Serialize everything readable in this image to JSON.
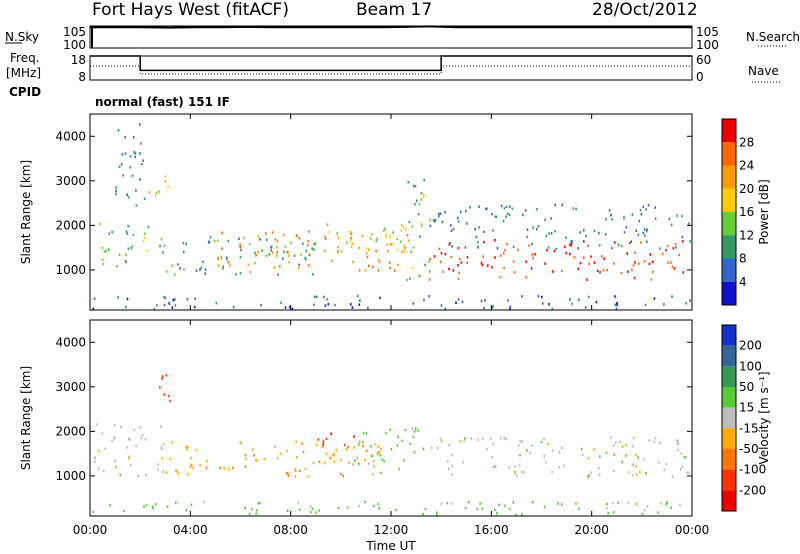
{
  "header": {
    "station": "Fort Hays West (fitACF)",
    "beam": "Beam 17",
    "date": "28/Oct/2012"
  },
  "side_labels": {
    "nsky": "N.Sky",
    "nsearch": "N.Search",
    "freq_line1": "Freq.",
    "freq_line2": "[MHz]",
    "nave": "Nave",
    "cpid_label": "CPID",
    "cpid_value": "normal (fast) 151 IF"
  },
  "chart_data": [
    {
      "id": "noise",
      "type": "line",
      "left_ticks": [
        "10^5",
        "10^0"
      ],
      "right_ticks": [
        "10^5",
        "10^0"
      ],
      "series": [
        {
          "values_log10": [
            5.0,
            5.0,
            5.0,
            4.9,
            5.0,
            5.0,
            5.1,
            5.0,
            5.0,
            5.0,
            5.0,
            5.0,
            5.1,
            5.2,
            5.0,
            5.0,
            5.0,
            5.0,
            5.0,
            5.0,
            5.0,
            5.0,
            5.0,
            5.0
          ]
        }
      ]
    },
    {
      "id": "freq_nave",
      "type": "line",
      "x": [
        0,
        2,
        2,
        14,
        14,
        24
      ],
      "left_ticks": [
        "18",
        "8"
      ],
      "right_ticks": [
        "60",
        "0"
      ],
      "freq_mhz": [
        18,
        18,
        12,
        12,
        18,
        18
      ],
      "nave": [
        35,
        35,
        15,
        15,
        35,
        35
      ]
    },
    {
      "id": "power",
      "type": "heatmap",
      "ylabel": "Slant Range [km]",
      "yticks": [
        1000,
        2000,
        3000,
        4000
      ],
      "ylim": [
        100,
        4500
      ],
      "xlim": [
        0,
        24
      ],
      "colorbar": {
        "label": "Power [dB]",
        "ticks": [
          "28",
          "24",
          "20",
          "16",
          "12",
          "8",
          "4"
        ],
        "colors": [
          "#ee0000",
          "#ff6600",
          "#ff9900",
          "#ffcc00",
          "#66cc33",
          "#339966",
          "#3366cc",
          "#1111cc"
        ]
      },
      "echo_regions": [
        {
          "t0": 0.1,
          "t1": 1.7,
          "r0": 1000,
          "r1": 2200,
          "level": 12
        },
        {
          "t0": 1.0,
          "t1": 2.2,
          "r0": 2200,
          "r1": 4300,
          "level": 8
        },
        {
          "t0": 2.2,
          "t1": 3.3,
          "r0": 2700,
          "r1": 3300,
          "level": 18
        },
        {
          "t0": 1.8,
          "t1": 3.2,
          "r0": 1400,
          "r1": 2000,
          "level": 14
        },
        {
          "t0": 3.0,
          "t1": 9.0,
          "r0": 900,
          "r1": 1800,
          "level": 10
        },
        {
          "t0": 5.0,
          "t1": 12.7,
          "r0": 1000,
          "r1": 1900,
          "level": 24
        },
        {
          "t0": 9.0,
          "t1": 12.8,
          "r0": 1400,
          "r1": 2100,
          "level": 16
        },
        {
          "t0": 12.6,
          "t1": 13.6,
          "r0": 800,
          "r1": 3300,
          "level": 14
        },
        {
          "t0": 13.5,
          "t1": 23.9,
          "r0": 800,
          "r1": 1700,
          "level": 28
        },
        {
          "t0": 13.5,
          "t1": 23.9,
          "r0": 1500,
          "r1": 2500,
          "level": 8
        },
        {
          "t0": 0.0,
          "t1": 24.0,
          "r0": 150,
          "r1": 450,
          "level": 6
        }
      ]
    },
    {
      "id": "velocity",
      "type": "heatmap",
      "ylabel": "Slant Range [km]",
      "yticks": [
        1000,
        2000,
        3000,
        4000
      ],
      "ylim": [
        100,
        4500
      ],
      "xlim": [
        0,
        24
      ],
      "xticks": [
        "00:00",
        "04:00",
        "08:00",
        "12:00",
        "16:00",
        "20:00",
        "00:00"
      ],
      "xlabel": "Time UT",
      "colorbar": {
        "label": "Velocity [m s^-1]",
        "ticks": [
          "200",
          "100",
          "50",
          "15",
          "-15",
          "-50",
          "-100",
          "-200"
        ],
        "colors": [
          "#1133cc",
          "#336699",
          "#339955",
          "#55cc33",
          "#bbbbbb",
          "#ffaa00",
          "#ff7700",
          "#ff3300",
          "#ee0000"
        ]
      },
      "echo_regions": [
        {
          "t0": 0.1,
          "t1": 3.0,
          "r0": 1000,
          "r1": 2200,
          "level": 0
        },
        {
          "t0": 2.3,
          "t1": 3.3,
          "r0": 2700,
          "r1": 3300,
          "level": -150
        },
        {
          "t0": 3.0,
          "t1": 12.5,
          "r0": 1000,
          "r1": 1800,
          "level": -40
        },
        {
          "t0": 9.0,
          "t1": 10.5,
          "r0": 1700,
          "r1": 2100,
          "level": -200
        },
        {
          "t0": 10.5,
          "t1": 13.7,
          "r0": 1300,
          "r1": 2100,
          "level": 30
        },
        {
          "t0": 13.5,
          "t1": 23.9,
          "r0": 1000,
          "r1": 1900,
          "level": 0
        },
        {
          "t0": 0.0,
          "t1": 24.0,
          "r0": 150,
          "r1": 450,
          "level": 30
        }
      ]
    }
  ]
}
